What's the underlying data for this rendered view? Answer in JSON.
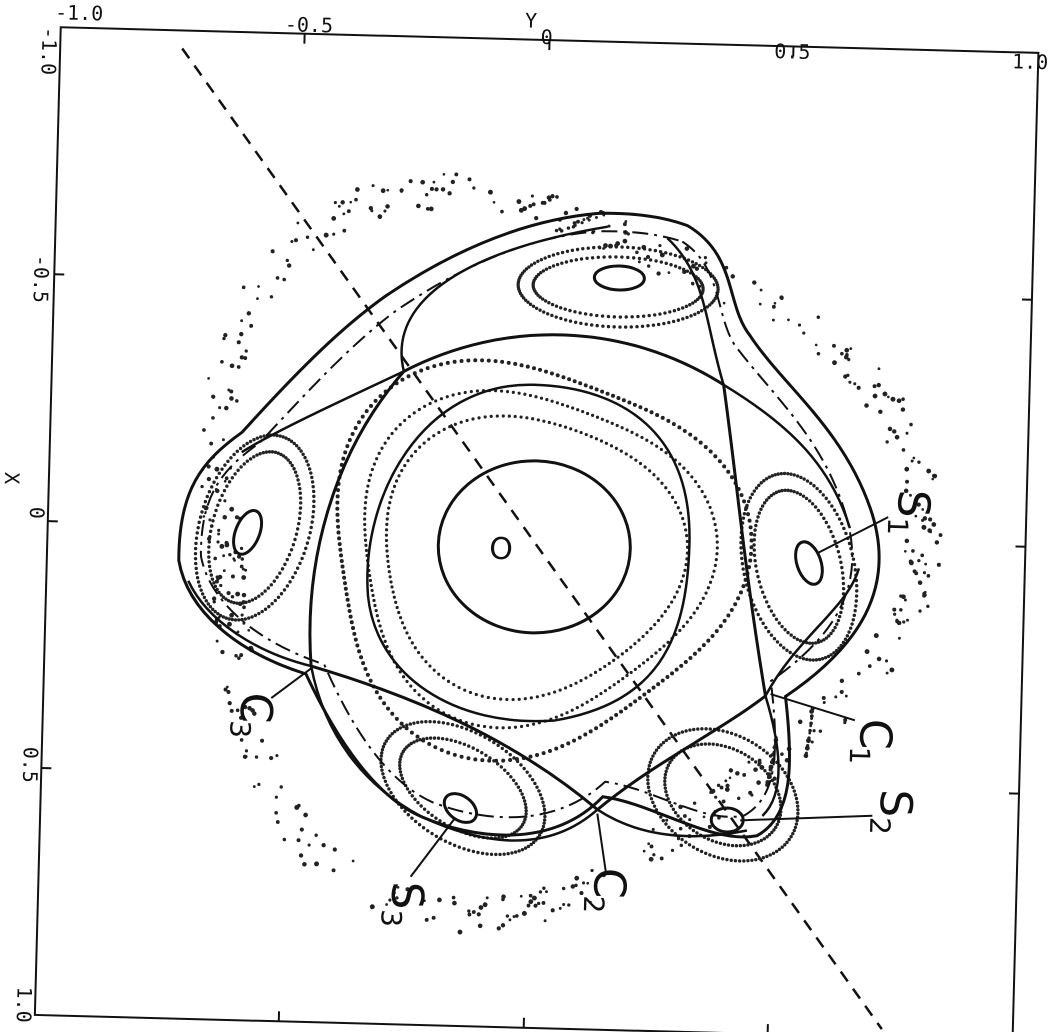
{
  "figure": {
    "axes": {
      "top_label": "Y",
      "left_label": "X",
      "top_ticks": [
        "-1.0",
        "-0.5",
        "0",
        "0.5",
        "1.0"
      ],
      "left_ticks": [
        "-1.0",
        "-0.5",
        "0",
        "0.5",
        "1.0"
      ],
      "range_y": [
        -1.0,
        1.0
      ],
      "range_x": [
        -1.0,
        1.0
      ]
    },
    "labels": {
      "origin": "O",
      "s1": "S",
      "s1_sub": "1",
      "s2": "S",
      "s2_sub": "2",
      "s3": "S",
      "s3_sub": "3",
      "c1": "C",
      "c1_sub": "1",
      "c2": "C",
      "c2_sub": "2",
      "c3": "C",
      "c3_sub": "3"
    },
    "colors": {
      "ink": "#111111",
      "background": "#ffffff"
    }
  }
}
